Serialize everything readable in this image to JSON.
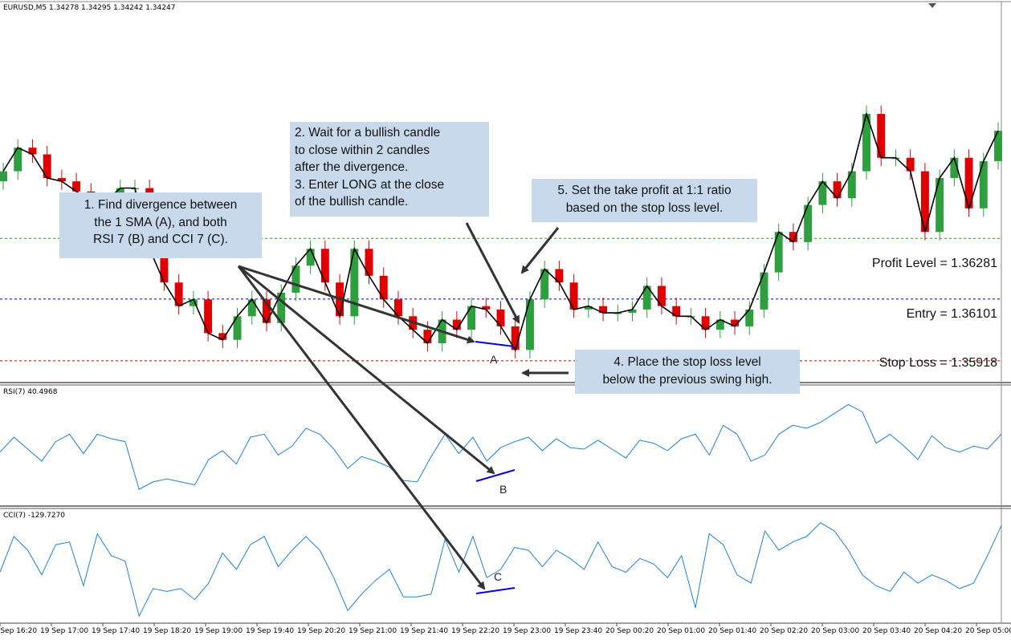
{
  "header": {
    "symbol_line": "EURUSD,M5  1.34278 1.34295 1.34242 1.34247"
  },
  "panels": {
    "rsi_title": "RSI(7) 40.4968",
    "cci_title": "CCI(7) -129.7270"
  },
  "annotations": {
    "note1": "1. Find divergence between\nthe 1 SMA (A), and both\nRSI 7 (B) and CCI 7 (C).",
    "note2": "2. Wait for a bullish candle\nto close within 2 candles\nafter the divergence.\n3. Enter LONG at the close\nof the bullish candle.",
    "note4": "4. Place the stop loss level\nbelow the previous swing high.",
    "note5": "5. Set the take profit at 1:1 ratio\nbased on the stop loss level.",
    "marker_a": "A",
    "marker_b": "B",
    "marker_c": "C"
  },
  "levels": {
    "profit": "Profit Level = 1.36281",
    "entry": "Entry = 1.36101",
    "stop": "Stop Loss = 1.35918"
  },
  "colors": {
    "bull": "#2e9e3e",
    "bear": "#e00000",
    "sma": "#000000",
    "indicator": "#1e82d6",
    "profit_line": "#00b400",
    "entry_line": "#0000b4",
    "stop_line": "#c80000",
    "divergence": "#0000e0",
    "arrow": "#333333",
    "note_bg": "#c9d9ec"
  },
  "chart_data": [
    {
      "type": "candlestick",
      "title": "EURUSD,M5",
      "x_ticks": [
        "19 Sep 16:20",
        "19 Sep 17:00",
        "19 Sep 17:40",
        "19 Sep 18:20",
        "19 Sep 19:00",
        "19 Sep 19:40",
        "19 Sep 20:20",
        "19 Sep 21:00",
        "19 Sep 21:40",
        "19 Sep 22:20",
        "19 Sep 23:00",
        "19 Sep 23:40",
        "20 Sep 00:20",
        "20 Sep 01:00",
        "20 Sep 01:40",
        "20 Sep 02:20",
        "20 Sep 03:00",
        "20 Sep 03:40",
        "20 Sep 04:20",
        "20 Sep 05:00"
      ],
      "ylim": [
        1.3587,
        1.3675
      ],
      "levels": {
        "profit": 1.36281,
        "entry": 1.36101,
        "stop": 1.35918
      },
      "close": [
        1.3648,
        1.3655,
        1.3653,
        1.3646,
        1.3645,
        1.3642,
        1.3639,
        1.3639,
        1.3643,
        1.3643,
        1.3625,
        1.3615,
        1.3608,
        1.361,
        1.36,
        1.3598,
        1.3605,
        1.361,
        1.3603,
        1.3612,
        1.362,
        1.3625,
        1.3615,
        1.3605,
        1.3625,
        1.3617,
        1.361,
        1.3605,
        1.3601,
        1.3597,
        1.3604,
        1.3601,
        1.3608,
        1.3607,
        1.3602,
        1.3595,
        1.361,
        1.3619,
        1.3615,
        1.3607,
        1.3608,
        1.3606,
        1.3606,
        1.3607,
        1.3614,
        1.3608,
        1.3605,
        1.3605,
        1.3601,
        1.3604,
        1.3602,
        1.3607,
        1.3618,
        1.363,
        1.3627,
        1.3638,
        1.3645,
        1.364,
        1.3648,
        1.3665,
        1.3652,
        1.3652,
        1.3648,
        1.363,
        1.3646,
        1.3652,
        1.3637,
        1.3651,
        1.366
      ],
      "sma_period": 1
    },
    {
      "type": "line",
      "title": "RSI(7)",
      "series": [
        {
          "name": "RSI(7)",
          "values": [
            48,
            58,
            50,
            42,
            55,
            60,
            47,
            60,
            57,
            55,
            23,
            28,
            30,
            28,
            26,
            43,
            49,
            40,
            58,
            60,
            46,
            52,
            64,
            60,
            50,
            37,
            45,
            42,
            38,
            29,
            28,
            45,
            60,
            47,
            58,
            42,
            51,
            55,
            58,
            49,
            57,
            51,
            50,
            56,
            50,
            44,
            56,
            54,
            49,
            57,
            60,
            46,
            66,
            60,
            42,
            46,
            60,
            66,
            64,
            68,
            74,
            80,
            75,
            54,
            60,
            52,
            43,
            59,
            51,
            48,
            52,
            50,
            60
          ]
        }
      ]
    },
    {
      "type": "line",
      "title": "CCI(7)",
      "series": [
        {
          "name": "CCI(7)",
          "values": [
            -40,
            90,
            40,
            -50,
            60,
            70,
            -90,
            100,
            20,
            0,
            -200,
            -100,
            -110,
            -100,
            -140,
            -80,
            30,
            -30,
            60,
            90,
            -20,
            40,
            90,
            40,
            -60,
            -180,
            -120,
            -70,
            -30,
            -130,
            -130,
            -120,
            80,
            -40,
            90,
            -60,
            -30,
            50,
            40,
            -20,
            40,
            10,
            -30,
            70,
            -20,
            -40,
            10,
            -10,
            -60,
            20,
            -170,
            100,
            60,
            -50,
            -80,
            110,
            40,
            70,
            90,
            140,
            110,
            40,
            -50,
            -90,
            -110,
            -40,
            -80,
            -50,
            -70,
            -100,
            -80,
            20,
            130
          ]
        }
      ]
    }
  ]
}
